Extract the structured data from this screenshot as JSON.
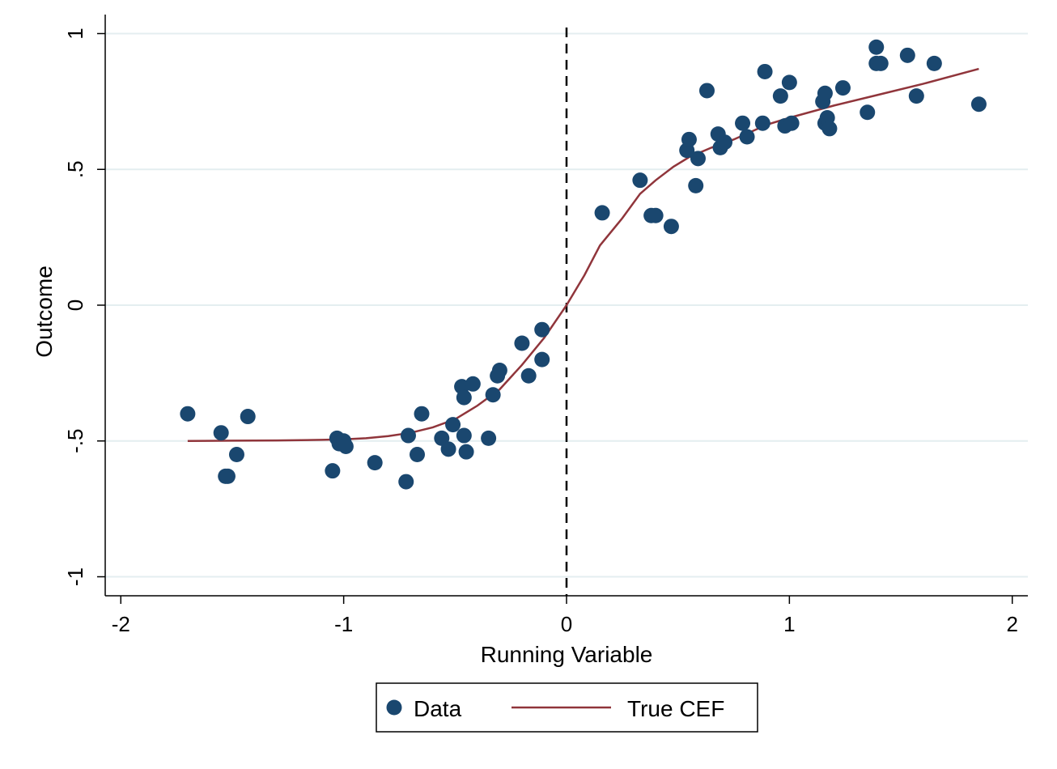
{
  "chart_data": {
    "type": "scatter",
    "xlabel": "Running Variable",
    "ylabel": "Outcome",
    "xlim": [
      -2.07,
      2.07
    ],
    "ylim": [
      -1.07,
      1.07
    ],
    "xticks": [
      {
        "value": -2,
        "label": "-2"
      },
      {
        "value": -1,
        "label": "-1"
      },
      {
        "value": 0,
        "label": "0"
      },
      {
        "value": 1,
        "label": "1"
      },
      {
        "value": 2,
        "label": "2"
      }
    ],
    "yticks": [
      {
        "value": -1,
        "label": "-1"
      },
      {
        "value": -0.5,
        "label": "-.5"
      },
      {
        "value": 0,
        "label": "0"
      },
      {
        "value": 0.5,
        "label": ".5"
      },
      {
        "value": 1,
        "label": "1"
      }
    ],
    "grid": "horizontal",
    "cutoff": 0,
    "legend": {
      "position": "bottom",
      "entries": [
        "Data",
        "True CEF"
      ]
    },
    "colors": {
      "data": "#1a476f",
      "cef": "#90353b",
      "grid": "#e4eef0"
    },
    "series": [
      {
        "name": "Data",
        "kind": "scatter",
        "points": [
          [
            -1.7,
            -0.4
          ],
          [
            -1.55,
            -0.47
          ],
          [
            -1.53,
            -0.63
          ],
          [
            -1.52,
            -0.63
          ],
          [
            -1.48,
            -0.55
          ],
          [
            -1.43,
            -0.41
          ],
          [
            -1.05,
            -0.61
          ],
          [
            -1.03,
            -0.49
          ],
          [
            -1.02,
            -0.51
          ],
          [
            -1.0,
            -0.5
          ],
          [
            -0.99,
            -0.52
          ],
          [
            -0.86,
            -0.58
          ],
          [
            -0.72,
            -0.65
          ],
          [
            -0.71,
            -0.48
          ],
          [
            -0.67,
            -0.55
          ],
          [
            -0.65,
            -0.4
          ],
          [
            -0.56,
            -0.49
          ],
          [
            -0.53,
            -0.53
          ],
          [
            -0.51,
            -0.44
          ],
          [
            -0.47,
            -0.3
          ],
          [
            -0.46,
            -0.34
          ],
          [
            -0.46,
            -0.48
          ],
          [
            -0.45,
            -0.54
          ],
          [
            -0.42,
            -0.29
          ],
          [
            -0.35,
            -0.49
          ],
          [
            -0.33,
            -0.33
          ],
          [
            -0.31,
            -0.26
          ],
          [
            -0.3,
            -0.24
          ],
          [
            -0.2,
            -0.14
          ],
          [
            -0.17,
            -0.26
          ],
          [
            -0.11,
            -0.2
          ],
          [
            -0.11,
            -0.09
          ],
          [
            0.16,
            0.34
          ],
          [
            0.33,
            0.46
          ],
          [
            0.38,
            0.33
          ],
          [
            0.4,
            0.33
          ],
          [
            0.47,
            0.29
          ],
          [
            0.54,
            0.57
          ],
          [
            0.55,
            0.61
          ],
          [
            0.58,
            0.44
          ],
          [
            0.59,
            0.54
          ],
          [
            0.63,
            0.79
          ],
          [
            0.68,
            0.63
          ],
          [
            0.69,
            0.58
          ],
          [
            0.71,
            0.6
          ],
          [
            0.79,
            0.67
          ],
          [
            0.81,
            0.62
          ],
          [
            0.88,
            0.67
          ],
          [
            0.89,
            0.86
          ],
          [
            0.96,
            0.77
          ],
          [
            0.98,
            0.66
          ],
          [
            1.0,
            0.82
          ],
          [
            1.01,
            0.67
          ],
          [
            1.15,
            0.75
          ],
          [
            1.16,
            0.78
          ],
          [
            1.16,
            0.67
          ],
          [
            1.17,
            0.69
          ],
          [
            1.18,
            0.65
          ],
          [
            1.24,
            0.8
          ],
          [
            1.35,
            0.71
          ],
          [
            1.39,
            0.95
          ],
          [
            1.39,
            0.89
          ],
          [
            1.41,
            0.89
          ],
          [
            1.53,
            0.92
          ],
          [
            1.57,
            0.77
          ],
          [
            1.65,
            0.89
          ],
          [
            1.85,
            0.74
          ]
        ]
      },
      {
        "name": "True CEF",
        "kind": "line",
        "points": [
          [
            -1.7,
            -0.5
          ],
          [
            -1.5,
            -0.499
          ],
          [
            -1.3,
            -0.498
          ],
          [
            -1.1,
            -0.496
          ],
          [
            -1.0,
            -0.494
          ],
          [
            -0.9,
            -0.49
          ],
          [
            -0.8,
            -0.482
          ],
          [
            -0.7,
            -0.47
          ],
          [
            -0.6,
            -0.45
          ],
          [
            -0.5,
            -0.42
          ],
          [
            -0.4,
            -0.37
          ],
          [
            -0.3,
            -0.31
          ],
          [
            -0.2,
            -0.22
          ],
          [
            -0.1,
            -0.12
          ],
          [
            0.0,
            0.0
          ],
          [
            0.08,
            0.11
          ],
          [
            0.15,
            0.22
          ],
          [
            0.25,
            0.32
          ],
          [
            0.33,
            0.41
          ],
          [
            0.4,
            0.46
          ],
          [
            0.48,
            0.51
          ],
          [
            0.55,
            0.545
          ],
          [
            0.65,
            0.58
          ],
          [
            0.75,
            0.61
          ],
          [
            0.9,
            0.665
          ],
          [
            1.0,
            0.69
          ],
          [
            1.2,
            0.735
          ],
          [
            1.4,
            0.775
          ],
          [
            1.6,
            0.815
          ],
          [
            1.85,
            0.87
          ]
        ]
      }
    ]
  }
}
